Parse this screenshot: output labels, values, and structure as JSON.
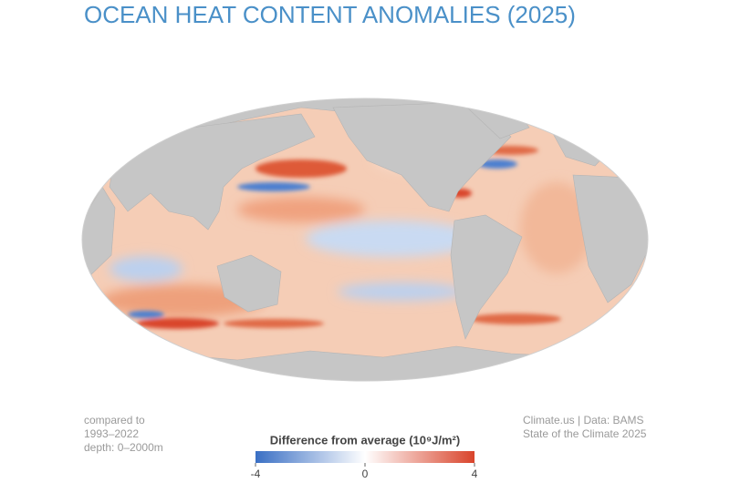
{
  "title": "OCEAN HEAT CONTENT ANOMALIES (2025)",
  "note": [
    "compared to",
    "1993–2022",
    "depth: 0–2000m"
  ],
  "legend": {
    "title": "Difference from average (10⁹J/m²)",
    "range": [
      -4,
      4
    ],
    "ticks": [
      -4,
      0,
      4
    ],
    "colors": [
      "#3a6fc4",
      "#ffffff",
      "#d9442b"
    ]
  },
  "credit": [
    "Climate.us | Data: BAMS",
    "State of the Climate 2025"
  ]
}
